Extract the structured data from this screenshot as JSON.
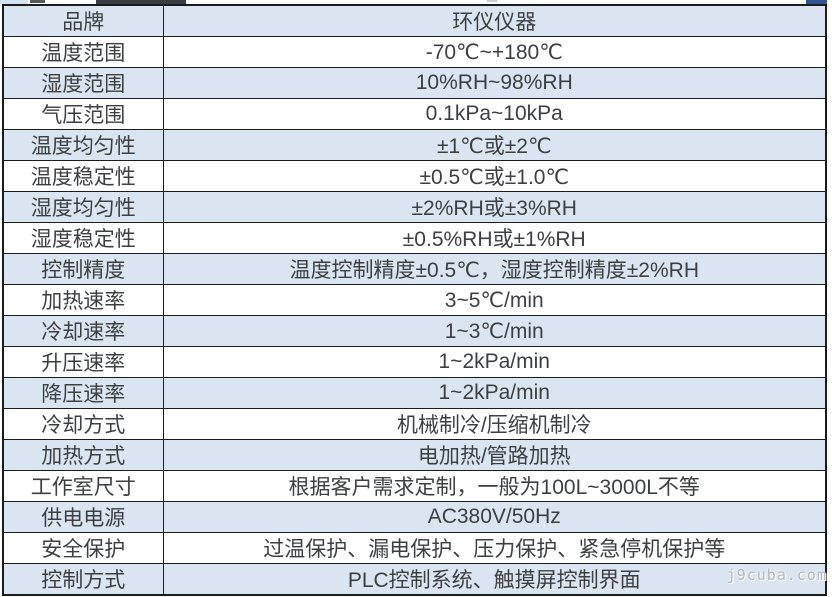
{
  "table": {
    "rows": [
      {
        "label": "品牌",
        "value": "环仪仪器"
      },
      {
        "label": "温度范围",
        "value": "-70℃~+180℃"
      },
      {
        "label": "湿度范围",
        "value": "10%RH~98%RH"
      },
      {
        "label": "气压范围",
        "value": "0.1kPa~10kPa"
      },
      {
        "label": "温度均匀性",
        "value": "±1℃或±2℃"
      },
      {
        "label": "温度稳定性",
        "value": "±0.5℃或±1.0℃"
      },
      {
        "label": "湿度均匀性",
        "value": "±2%RH或±3%RH"
      },
      {
        "label": "湿度稳定性",
        "value": "±0.5%RH或±1%RH"
      },
      {
        "label": "控制精度",
        "value": "温度控制精度±0.5℃，湿度控制精度±2%RH"
      },
      {
        "label": "加热速率",
        "value": "3~5℃/min"
      },
      {
        "label": "冷却速率",
        "value": "1~3℃/min"
      },
      {
        "label": "升压速率",
        "value": "1~2kPa/min"
      },
      {
        "label": "降压速率",
        "value": "1~2kPa/min"
      },
      {
        "label": "冷却方式",
        "value": "机械制冷/压缩机制冷"
      },
      {
        "label": "加热方式",
        "value": "电加热/管路加热"
      },
      {
        "label": "工作室尺寸",
        "value": "根据客户需求定制，一般为100L~3000L不等"
      },
      {
        "label": "供电电源",
        "value": "AC380V/50Hz"
      },
      {
        "label": "安全保护",
        "value": "过温保护、漏电保护、压力保护、紧急停机保护等"
      },
      {
        "label": "控制方式",
        "value": "PLC控制系统、触摸屏控制界面"
      }
    ]
  },
  "watermark": "j9cuba.com",
  "colors": {
    "row_alt_blue": "#dbe5f1",
    "row_white": "#ffffff",
    "border": "#1c1c1c",
    "text": "#3d3f42",
    "watermark_gray": "#b3b6ba"
  }
}
